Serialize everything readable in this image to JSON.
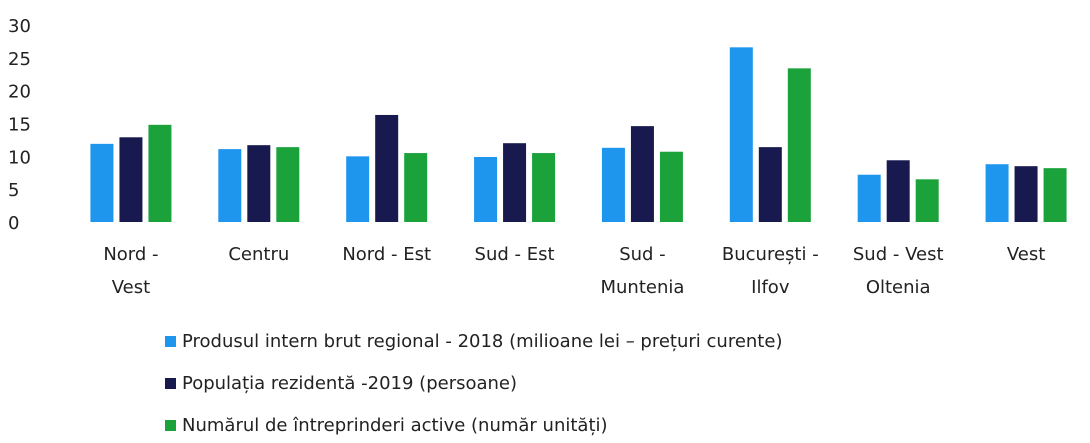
{
  "chart_data": {
    "type": "bar",
    "categories": [
      "Nord -\nVest",
      "Centru",
      "Nord - Est",
      "Sud - Est",
      "Sud -\nMuntenia",
      "București -\nIlfov",
      "Sud - Vest\nOltenia",
      "Vest"
    ],
    "series": [
      {
        "name": "Produsul intern brut regional - 2018 (milioane lei – prețuri curente)",
        "color": "#1e96ee",
        "values": [
          11.9,
          11.1,
          10.0,
          9.9,
          11.3,
          26.6,
          7.2,
          8.8
        ]
      },
      {
        "name": "Populația rezidentă -2019 (persoane)",
        "color": "#17194f",
        "values": [
          12.9,
          11.7,
          16.3,
          12.0,
          14.6,
          11.4,
          9.4,
          8.5
        ]
      },
      {
        "name": "Numărul de întreprinderi active (număr unități)",
        "color": "#1ba23b",
        "values": [
          14.8,
          11.4,
          10.5,
          10.5,
          10.7,
          23.4,
          6.5,
          8.2
        ]
      }
    ],
    "ylim": [
      0,
      30
    ],
    "yticks": [
      0,
      5,
      10,
      15,
      20,
      25,
      30
    ],
    "grid": false,
    "legend": "bottom"
  }
}
